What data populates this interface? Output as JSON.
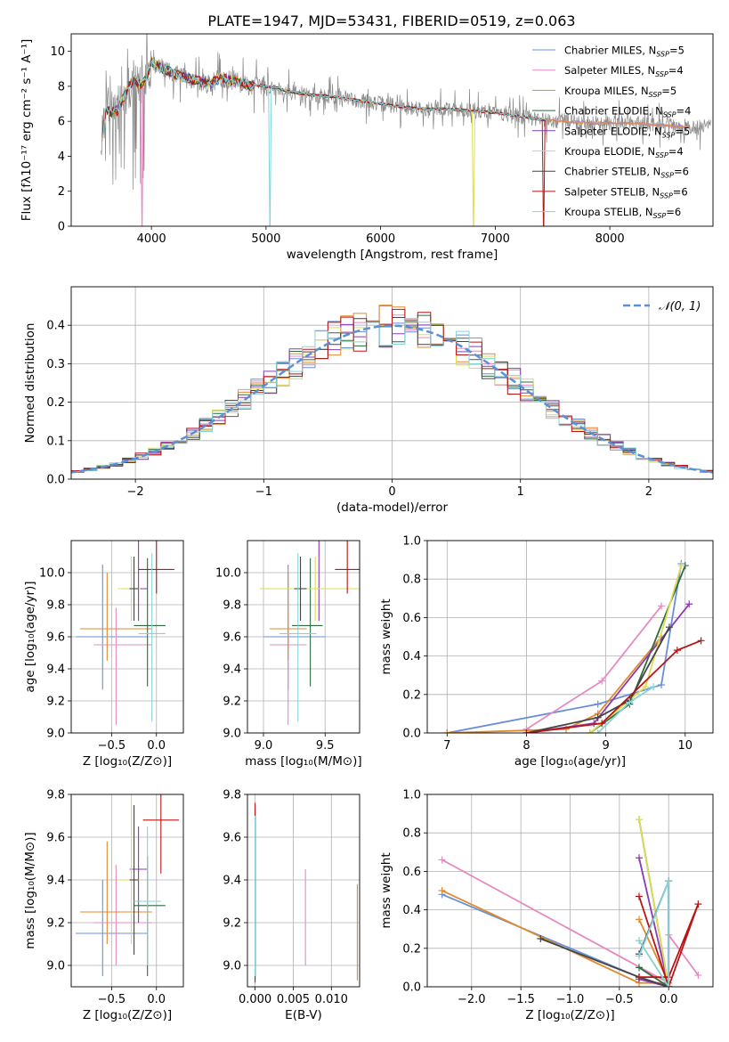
{
  "title": "PLATE=1947, MJD=53431, FIBERID=0519, z=0.063",
  "colors": {
    "Chabrier MILES": "#6a8fd9",
    "Salpeter MILES": "#e58bc0",
    "Kroupa MILES": "#e08a2e",
    "Chabrier ELODIE": "#2f6b3e",
    "Salpeter ELODIE": "#8a3ab5",
    "Kroupa ELODIE": "#dddd55",
    "Chabrier STELIB": "#444444",
    "Salpeter STELIB": "#b81515",
    "Kroupa STELIB": "#85d3d8",
    "spectrum": "#888888",
    "gaussian": "#5b8fd9"
  },
  "chart_data": [
    {
      "type": "line",
      "name": "spectrum",
      "xlabel": "wavelength [Angstrom, rest frame]",
      "ylabel": "Flux [fλ10⁻¹⁷ erg cm⁻² s⁻¹ A⁻¹]",
      "xlim": [
        3300,
        8900
      ],
      "ylim": [
        0,
        11
      ],
      "xticks": [
        4000,
        5000,
        6000,
        7000,
        8000
      ],
      "yticks": [
        0,
        2,
        4,
        6,
        8,
        10
      ],
      "grid": false,
      "legend": "top-right",
      "continuum": {
        "x": [
          3570,
          3600,
          3650,
          3700,
          3750,
          3800,
          3850,
          3900,
          3950,
          4000,
          4100,
          4200,
          4300,
          4400,
          4500,
          4600,
          4700,
          4800,
          4850,
          4900,
          5000,
          5100,
          5200,
          5300,
          5400,
          5500,
          5600,
          5700,
          5800,
          5900,
          6000,
          6200,
          6400,
          6600,
          6800,
          7000,
          7200,
          7400,
          7600,
          7800,
          8000,
          8200,
          8400,
          8600,
          8800
        ],
        "y": [
          5.0,
          6.8,
          6.5,
          6.6,
          7.2,
          8.0,
          8.4,
          8.1,
          8.3,
          9.4,
          9.0,
          8.7,
          8.5,
          8.3,
          8.1,
          8.5,
          8.3,
          8.2,
          8.0,
          8.1,
          8.0,
          7.9,
          7.7,
          7.6,
          7.5,
          7.45,
          7.4,
          7.3,
          7.2,
          7.1,
          7.0,
          6.8,
          6.7,
          6.7,
          6.6,
          6.5,
          6.3,
          6.1,
          6.0,
          5.9,
          5.9,
          5.9,
          5.8,
          5.7,
          5.7
        ]
      },
      "series": [
        {
          "name": "Chabrier MILES, N_SSP=5"
        },
        {
          "name": "Salpeter MILES, N_SSP=4"
        },
        {
          "name": "Kroupa MILES, N_SSP=5"
        },
        {
          "name": "Chabrier ELODIE, N_SSP=4"
        },
        {
          "name": "Salpeter ELODIE, N_SSP=5"
        },
        {
          "name": "Kroupa ELODIE, N_SSP=4"
        },
        {
          "name": "Chabrier STELIB, N_SSP=6"
        },
        {
          "name": "Salpeter STELIB, N_SSP=6"
        },
        {
          "name": "Kroupa STELIB, N_SSP=6"
        }
      ]
    },
    {
      "type": "area",
      "name": "residuals",
      "xlabel": "(data-model)/error",
      "ylabel": "Normed distribution",
      "xlim": [
        -2.5,
        2.5
      ],
      "ylim": [
        0,
        0.5
      ],
      "xticks": [
        -2,
        -1,
        0,
        1,
        2
      ],
      "yticks": [
        0.0,
        0.1,
        0.2,
        0.3,
        0.4
      ],
      "grid": true,
      "legend": "top-right",
      "legend_label": "𝒩(0, 1)",
      "bin_width": 0.1
    },
    {
      "type": "scatter",
      "name": "age-vs-Z",
      "xlabel": "Z [log₁₀(Z/Z⊙)]",
      "ylabel": "age  [log₁₀(age/yr)]",
      "xlim": [
        -0.95,
        0.3
      ],
      "ylim": [
        9.0,
        10.2
      ],
      "xticks": [
        -0.5,
        0.0
      ],
      "yticks": [
        9.0,
        9.2,
        9.4,
        9.6,
        9.8,
        10.0
      ],
      "grid": true,
      "points": [
        {
          "model": "Chabrier MILES",
          "x": -0.6,
          "xerr": 0.3,
          "y": 9.6,
          "yerr": 0.33,
          "x_e": 0.5,
          "y_e": 0.45
        },
        {
          "model": "Salpeter MILES",
          "x": -0.45,
          "xerr": 0.25,
          "y": 9.55,
          "yerr": 0.5,
          "x_e": 0.4,
          "y_e": 0.23
        },
        {
          "model": "Kroupa MILES",
          "x": -0.55,
          "xerr": 0.3,
          "y": 9.65,
          "yerr": 0.2,
          "x_e": 0.5,
          "y_e": 0.35
        },
        {
          "model": "Chabrier ELODIE",
          "x": -0.1,
          "xerr": 0.15,
          "y": 9.67,
          "yerr": 0.38,
          "x_e": 0.2,
          "y_e": 0.42
        },
        {
          "model": "Salpeter ELODIE",
          "x": -0.2,
          "xerr": 0.1,
          "y": 9.9,
          "yerr": 0.2,
          "x_e": 0.1,
          "y_e": 0.3
        },
        {
          "model": "Kroupa ELODIE",
          "x": -0.28,
          "xerr": 0.15,
          "y": 9.9,
          "yerr": 0.2,
          "x_e": 0.1,
          "y_e": 0.2
        },
        {
          "model": "Chabrier STELIB",
          "x": -0.25,
          "xerr": 0.05,
          "y": 9.9,
          "yerr": 0.2,
          "x_e": 0.05,
          "y_e": 0.2
        },
        {
          "model": "Salpeter STELIB",
          "x": -0.0,
          "xerr": 0.2,
          "y": 10.02,
          "yerr": 0.15,
          "x_e": 0.2,
          "y_e": 0.25
        },
        {
          "model": "Kroupa STELIB",
          "x": -0.05,
          "xerr": 0.15,
          "y": 9.62,
          "yerr": 0.55,
          "x_e": 0.15,
          "y_e": 0.5
        }
      ]
    },
    {
      "type": "scatter",
      "name": "age-vs-mass",
      "xlabel": "mass [log₁₀(M/M⊙)]",
      "ylabel": "",
      "xlim": [
        8.87,
        9.78
      ],
      "ylim": [
        9.0,
        10.2
      ],
      "xticks": [
        9.0,
        9.5
      ],
      "yticks": [
        9.0,
        9.2,
        9.4,
        9.6,
        9.8,
        10.0
      ],
      "grid": true,
      "points": [
        {
          "model": "Chabrier MILES",
          "x": 9.2,
          "xerr": 0.2,
          "y": 9.6,
          "yerr": 0.33,
          "x_e": 0.3,
          "y_e": 0.45
        },
        {
          "model": "Salpeter MILES",
          "x": 9.2,
          "xerr": 0.15,
          "y": 9.55,
          "yerr": 0.5,
          "x_e": 0.15,
          "y_e": 0.23
        },
        {
          "model": "Kroupa MILES",
          "x": 9.2,
          "xerr": 0.15,
          "y": 9.65,
          "yerr": 0.2,
          "x_e": 0.15,
          "y_e": 0.35
        },
        {
          "model": "Chabrier ELODIE",
          "x": 9.38,
          "xerr": 0.15,
          "y": 9.67,
          "yerr": 0.38,
          "x_e": 0.1,
          "y_e": 0.42
        },
        {
          "model": "Salpeter ELODIE",
          "x": 9.45,
          "xerr": 0.45,
          "y": 9.9,
          "yerr": 0.2,
          "x_e": 0.5,
          "y_e": 0.3
        },
        {
          "model": "Kroupa ELODIE",
          "x": 9.42,
          "xerr": 0.45,
          "y": 9.9,
          "yerr": 0.2,
          "x_e": 0.45,
          "y_e": 0.2
        },
        {
          "model": "Chabrier STELIB",
          "x": 9.3,
          "xerr": 0.05,
          "y": 9.9,
          "yerr": 0.2,
          "x_e": 0.05,
          "y_e": 0.2
        },
        {
          "model": "Salpeter STELIB",
          "x": 9.68,
          "xerr": 0.1,
          "y": 10.02,
          "yerr": 0.15,
          "x_e": 0.15,
          "y_e": 0.25
        },
        {
          "model": "Kroupa STELIB",
          "x": 9.28,
          "xerr": 0.15,
          "y": 9.62,
          "yerr": 0.55,
          "x_e": 0.15,
          "y_e": 0.5
        }
      ]
    },
    {
      "type": "line",
      "name": "mass-weight-vs-age",
      "xlabel": "age  [log₁₀(age/yr)]",
      "ylabel": "mass weight",
      "xlim": [
        6.75,
        10.35
      ],
      "ylim": [
        0,
        1.0
      ],
      "xticks": [
        7,
        8,
        9,
        10
      ],
      "yticks": [
        0.0,
        0.2,
        0.4,
        0.6,
        0.8,
        1.0
      ],
      "grid": true,
      "series": [
        {
          "model": "Chabrier MILES",
          "x": [
            7.0,
            8.9,
            9.7,
            9.95
          ],
          "y": [
            0.0,
            0.15,
            0.25,
            0.88
          ]
        },
        {
          "model": "Salpeter MILES",
          "x": [
            8.0,
            8.95,
            9.7
          ],
          "y": [
            0.02,
            0.27,
            0.66
          ]
        },
        {
          "model": "Kroupa MILES",
          "x": [
            7.0,
            8.5,
            8.9,
            9.7
          ],
          "y": [
            0.0,
            0.02,
            0.1,
            0.5
          ]
        },
        {
          "model": "Chabrier ELODIE",
          "x": [
            8.8,
            9.3,
            10.0
          ],
          "y": [
            0.0,
            0.15,
            0.87
          ]
        },
        {
          "model": "Salpeter ELODIE",
          "x": [
            8.0,
            8.85,
            10.05
          ],
          "y": [
            0.0,
            0.05,
            0.67
          ]
        },
        {
          "model": "Kroupa ELODIE",
          "x": [
            8.8,
            9.5,
            9.95
          ],
          "y": [
            0.0,
            0.24,
            0.87
          ]
        },
        {
          "model": "Chabrier STELIB",
          "x": [
            8.0,
            8.9,
            9.3,
            9.8
          ],
          "y": [
            0.0,
            0.08,
            0.17,
            0.55
          ]
        },
        {
          "model": "Salpeter STELIB",
          "x": [
            8.0,
            8.95,
            9.9,
            10.2
          ],
          "y": [
            0.0,
            0.05,
            0.43,
            0.48
          ]
        },
        {
          "model": "Kroupa STELIB",
          "x": [
            8.9,
            9.3,
            9.6
          ],
          "y": [
            0.0,
            0.16,
            0.24
          ]
        }
      ]
    },
    {
      "type": "scatter",
      "name": "mass-vs-Z",
      "xlabel": "Z [log₁₀(Z/Z⊙)]",
      "ylabel": "mass [log₁₀(M/M⊙)]",
      "xlim": [
        -0.95,
        0.3
      ],
      "ylim": [
        8.9,
        9.8
      ],
      "xticks": [
        -0.5,
        0.0
      ],
      "yticks": [
        9.0,
        9.2,
        9.4,
        9.6,
        9.8
      ],
      "grid": true,
      "points": [
        {
          "model": "Chabrier MILES",
          "x": -0.6,
          "xerr": 0.3,
          "y": 9.15,
          "yerr": 0.2,
          "x_e": 0.5,
          "y_e": 0.25
        },
        {
          "model": "Salpeter MILES",
          "x": -0.45,
          "xerr": 0.25,
          "y": 9.2,
          "yerr": 0.2,
          "x_e": 0.4,
          "y_e": 0.27
        },
        {
          "model": "Kroupa MILES",
          "x": -0.55,
          "xerr": 0.3,
          "y": 9.25,
          "yerr": 0.15,
          "x_e": 0.5,
          "y_e": 0.33
        },
        {
          "model": "Chabrier ELODIE",
          "x": -0.1,
          "xerr": 0.15,
          "y": 9.28,
          "yerr": 0.33,
          "x_e": 0.2,
          "y_e": 0.23
        },
        {
          "model": "Salpeter ELODIE",
          "x": -0.2,
          "xerr": 0.1,
          "y": 9.45,
          "yerr": 0.25,
          "x_e": 0.1,
          "y_e": 0.2
        },
        {
          "model": "Kroupa ELODIE",
          "x": -0.28,
          "xerr": 0.15,
          "y": 9.4,
          "yerr": 0.3,
          "x_e": 0.1,
          "y_e": 0.4
        },
        {
          "model": "Chabrier STELIB",
          "x": -0.25,
          "xerr": 0.05,
          "y": 9.4,
          "yerr": 0.35,
          "x_e": 0.05,
          "y_e": 0.35
        },
        {
          "model": "Salpeter STELIB",
          "x": 0.05,
          "xerr": 0.2,
          "y": 9.68,
          "yerr": 0.25,
          "x_e": 0.2,
          "y_e": 0.2
        },
        {
          "model": "Kroupa STELIB",
          "x": -0.1,
          "xerr": 0.15,
          "y": 9.3,
          "yerr": 0.3,
          "x_e": 0.15,
          "y_e": 0.35
        }
      ]
    },
    {
      "type": "scatter",
      "name": "mass-vs-EBV",
      "xlabel": "E(B-V)",
      "ylabel": "",
      "xlim": [
        -0.001,
        0.0137
      ],
      "ylim": [
        8.9,
        9.8
      ],
      "xticks": [
        0.0,
        0.005,
        0.01
      ],
      "xticklabels": [
        "0.000",
        "0.005",
        "0.010"
      ],
      "yticks": [
        9.0,
        9.2,
        9.4,
        9.6,
        9.8
      ],
      "grid": true,
      "points": [
        {
          "model": "Chabrier MILES",
          "x": 0.0,
          "y": 9.3,
          "y_lo": 8.93,
          "y_hi": 9.7
        },
        {
          "model": "Salpeter MILES",
          "x": 0.0066,
          "y": 9.2,
          "y_lo": 9.0,
          "y_hi": 9.45
        },
        {
          "model": "Kroupa MILES",
          "x": 0.0134,
          "y": 9.2,
          "y_lo": 8.93,
          "y_hi": 9.38
        },
        {
          "model": "Chabrier ELODIE",
          "x": 0.0,
          "y": 9.3,
          "y_lo": 8.95,
          "y_hi": 9.7
        },
        {
          "model": "Salpeter ELODIE",
          "x": 0.0,
          "y": 9.3,
          "y_lo": 8.95,
          "y_hi": 9.7
        },
        {
          "model": "Kroupa ELODIE",
          "x": 0.0,
          "y": 9.3,
          "y_lo": 8.95,
          "y_hi": 9.7
        },
        {
          "model": "Chabrier STELIB",
          "x": 0.0,
          "y": 9.3,
          "y_lo": 8.92,
          "y_hi": 9.72
        },
        {
          "model": "Salpeter STELIB",
          "x": 0.0,
          "y": 9.4,
          "y_lo": 9.0,
          "y_hi": 9.76
        },
        {
          "model": "Kroupa STELIB",
          "x": 0.0,
          "y": 9.3,
          "y_lo": 8.95,
          "y_hi": 9.7
        }
      ]
    },
    {
      "type": "line",
      "name": "mass-weight-vs-Z",
      "xlabel": "Z [log₁₀(Z/Z⊙)]",
      "ylabel": "mass weight",
      "xlim": [
        -2.45,
        0.45
      ],
      "ylim": [
        0,
        1.0
      ],
      "xticks": [
        -2.0,
        -1.5,
        -1.0,
        -0.5,
        0.0
      ],
      "yticks": [
        0.0,
        0.2,
        0.4,
        0.6,
        0.8,
        1.0
      ],
      "grid": true,
      "series": [
        {
          "model": "Chabrier MILES",
          "x": [
            -2.3,
            -0.3,
            0.0,
            0.0
          ],
          "y": [
            0.48,
            0.05,
            0.0,
            0.55
          ]
        },
        {
          "model": "Salpeter MILES",
          "x": [
            -2.3,
            0.0,
            0.0,
            0.3
          ],
          "y": [
            0.66,
            0.02,
            0.27,
            0.06
          ]
        },
        {
          "model": "Kroupa MILES",
          "x": [
            -2.3,
            -0.3,
            0.0,
            -0.3
          ],
          "y": [
            0.5,
            0.02,
            0.02,
            0.35
          ]
        },
        {
          "model": "Chabrier ELODIE",
          "x": [
            -0.3,
            0.0,
            -0.3
          ],
          "y": [
            0.87,
            0.0,
            0.1
          ]
        },
        {
          "model": "Salpeter ELODIE",
          "x": [
            -0.3,
            0.0,
            -0.3
          ],
          "y": [
            0.67,
            0.0,
            0.04
          ]
        },
        {
          "model": "Kroupa ELODIE",
          "x": [
            -0.3,
            0.0,
            -0.3
          ],
          "y": [
            0.87,
            0.0,
            0.24
          ]
        },
        {
          "model": "Chabrier STELIB",
          "x": [
            -1.3,
            -0.3,
            0.0,
            0.0,
            -0.3
          ],
          "y": [
            0.25,
            0.05,
            0.0,
            0.55,
            0.17
          ]
        },
        {
          "model": "Salpeter STELIB",
          "x": [
            -0.3,
            0.0,
            0.3,
            0.0,
            -0.3
          ],
          "y": [
            0.47,
            0.0,
            0.43,
            0.05,
            0.05
          ]
        },
        {
          "model": "Kroupa STELIB",
          "x": [
            -0.3,
            0.0,
            0.0,
            -0.3
          ],
          "y": [
            0.24,
            0.0,
            0.55,
            0.16
          ]
        }
      ]
    }
  ]
}
